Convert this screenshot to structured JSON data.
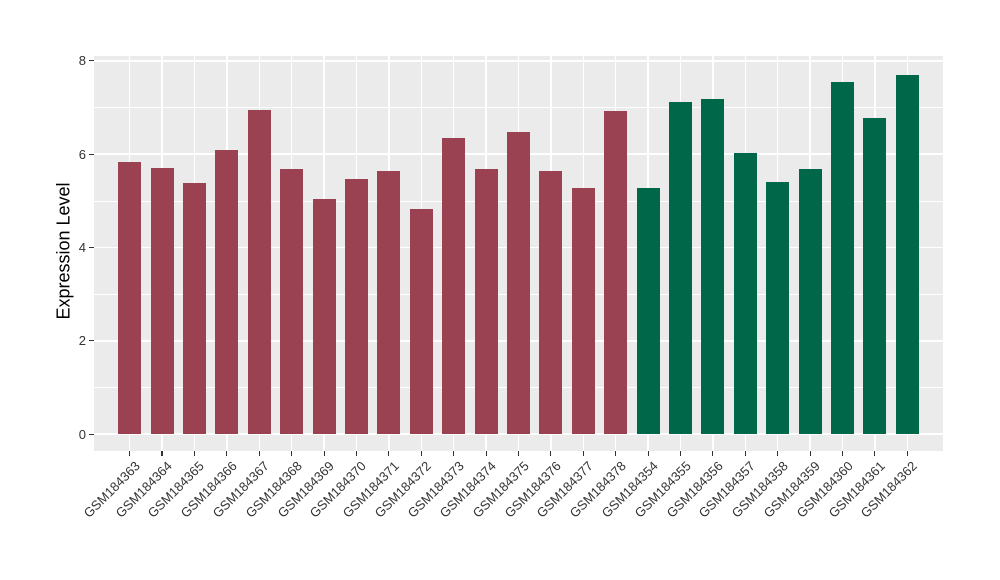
{
  "chart_data": {
    "type": "bar",
    "ylabel": "Expression Level",
    "xlabel": "",
    "ylim": [
      0,
      8
    ],
    "yticks": [
      0,
      2,
      4,
      6,
      8
    ],
    "y_minor_gridlines": [
      1,
      3,
      5,
      7
    ],
    "legend_position": "none",
    "grid": "white gridlines on gray panel",
    "panel_background_color": "#EBEBEB",
    "gridline_color": "#FFFFFF",
    "axis_text_color": "#333333",
    "group_colors": {
      "maroon": "#9B4252",
      "green": "#006748"
    },
    "bars": [
      {
        "label": "GSM184363",
        "value": 5.82,
        "group": "maroon"
      },
      {
        "label": "GSM184364",
        "value": 5.7,
        "group": "maroon"
      },
      {
        "label": "GSM184365",
        "value": 5.37,
        "group": "maroon"
      },
      {
        "label": "GSM184366",
        "value": 6.09,
        "group": "maroon"
      },
      {
        "label": "GSM184367",
        "value": 6.95,
        "group": "maroon"
      },
      {
        "label": "GSM184368",
        "value": 5.69,
        "group": "maroon"
      },
      {
        "label": "GSM184369",
        "value": 5.03,
        "group": "maroon"
      },
      {
        "label": "GSM184370",
        "value": 5.47,
        "group": "maroon"
      },
      {
        "label": "GSM184371",
        "value": 5.63,
        "group": "maroon"
      },
      {
        "label": "GSM184372",
        "value": 4.83,
        "group": "maroon"
      },
      {
        "label": "GSM184373",
        "value": 6.35,
        "group": "maroon"
      },
      {
        "label": "GSM184374",
        "value": 5.69,
        "group": "maroon"
      },
      {
        "label": "GSM184375",
        "value": 6.48,
        "group": "maroon"
      },
      {
        "label": "GSM184376",
        "value": 5.64,
        "group": "maroon"
      },
      {
        "label": "GSM184377",
        "value": 5.28,
        "group": "maroon"
      },
      {
        "label": "GSM184378",
        "value": 6.92,
        "group": "maroon"
      },
      {
        "label": "GSM184354",
        "value": 5.28,
        "group": "green"
      },
      {
        "label": "GSM184355",
        "value": 7.11,
        "group": "green"
      },
      {
        "label": "GSM184356",
        "value": 7.18,
        "group": "green"
      },
      {
        "label": "GSM184357",
        "value": 6.03,
        "group": "green"
      },
      {
        "label": "GSM184358",
        "value": 5.4,
        "group": "green"
      },
      {
        "label": "GSM184359",
        "value": 5.67,
        "group": "green"
      },
      {
        "label": "GSM184360",
        "value": 7.55,
        "group": "green"
      },
      {
        "label": "GSM184361",
        "value": 6.77,
        "group": "green"
      },
      {
        "label": "GSM184362",
        "value": 7.7,
        "group": "green"
      }
    ]
  }
}
